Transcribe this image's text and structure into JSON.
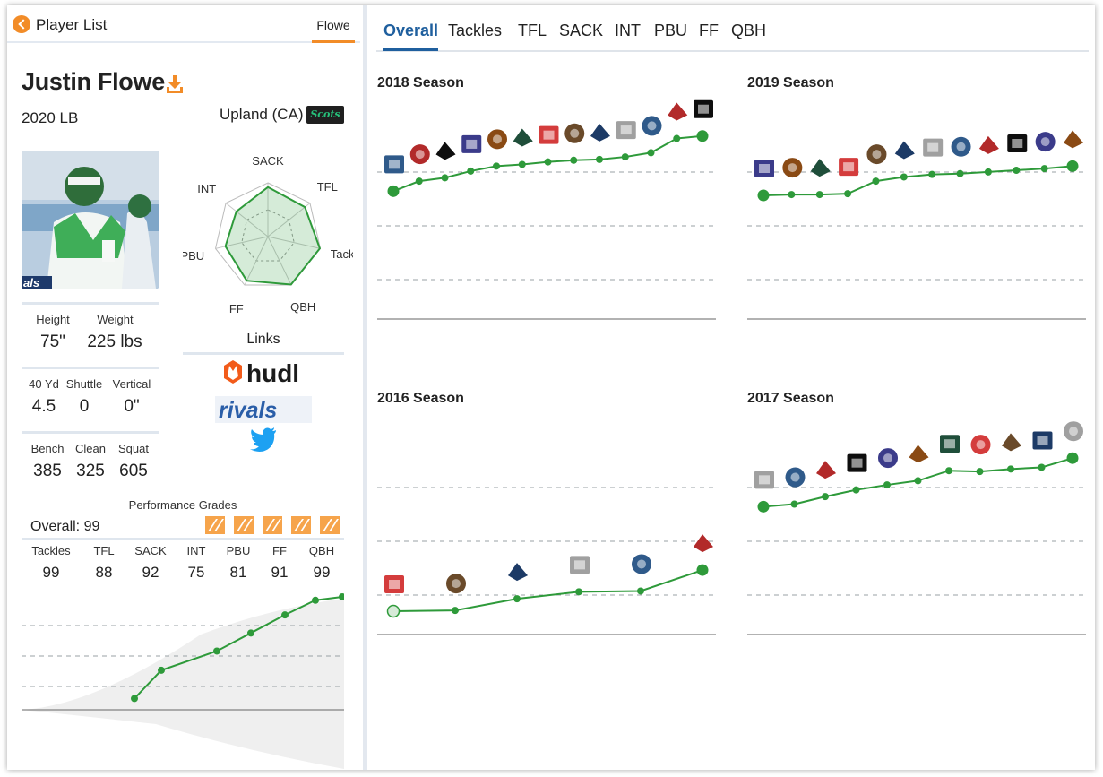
{
  "header": {
    "back_label": "Player List",
    "search_tab": "Flowe"
  },
  "player": {
    "name": "Justin Flowe",
    "class_position": "2020 LB",
    "hometown": "Upland (CA)",
    "school_logo_text": "Scots",
    "photo_watermark": "als"
  },
  "radar": {
    "axes": [
      "SACK",
      "TFL",
      "Tackle",
      "QBH",
      "FF",
      "PBU",
      "INT"
    ],
    "values": [
      0.92,
      0.88,
      0.99,
      0.99,
      0.91,
      0.81,
      0.75
    ]
  },
  "links": {
    "title": "Links",
    "items": [
      "hudl",
      "rivals",
      "twitter"
    ],
    "hudl_label": "hudl",
    "rivals_label": "rivals"
  },
  "measurables": {
    "row1": [
      {
        "label": "Height",
        "value": "75\""
      },
      {
        "label": "Weight",
        "value": "225 lbs"
      }
    ],
    "row2": [
      {
        "label": "40 Yd",
        "value": "4.5"
      },
      {
        "label": "Shuttle",
        "value": "0"
      },
      {
        "label": "Vertical",
        "value": "0\""
      }
    ],
    "row3": [
      {
        "label": "Bench",
        "value": "385"
      },
      {
        "label": "Clean",
        "value": "325"
      },
      {
        "label": "Squat",
        "value": "605"
      }
    ]
  },
  "performance": {
    "title": "Performance Grades",
    "overall_label": "Overall: 99",
    "grade_icon_count": 5,
    "grades": [
      {
        "label": "Tackles",
        "value": "99"
      },
      {
        "label": "TFL",
        "value": "88"
      },
      {
        "label": "SACK",
        "value": "92"
      },
      {
        "label": "INT",
        "value": "75"
      },
      {
        "label": "PBU",
        "value": "81"
      },
      {
        "label": "FF",
        "value": "91"
      },
      {
        "label": "QBH",
        "value": "99"
      }
    ],
    "trend": [
      0.1,
      0.35,
      0.52,
      0.68,
      0.84,
      0.97,
      1.0
    ]
  },
  "tabs": [
    "Overall",
    "Tackles",
    "TFL",
    "SACK",
    "INT",
    "PBU",
    "FF",
    "QBH"
  ],
  "active_tab": "Overall",
  "chart_data": [
    {
      "type": "line",
      "title": "2018 Season",
      "series": [
        {
          "name": "Overall",
          "values": [
            0.2,
            0.32,
            0.36,
            0.44,
            0.5,
            0.52,
            0.55,
            0.57,
            0.58,
            0.61,
            0.66,
            0.83,
            0.86
          ]
        }
      ]
    },
    {
      "type": "line",
      "title": "2019 Season",
      "series": [
        {
          "name": "Overall",
          "values": [
            0.15,
            0.16,
            0.16,
            0.17,
            0.32,
            0.37,
            0.4,
            0.41,
            0.43,
            0.45,
            0.47,
            0.5
          ]
        }
      ]
    },
    {
      "type": "line",
      "title": "2016 Season",
      "series": [
        {
          "name": "Overall",
          "values": [
            0.0,
            0.01,
            0.16,
            0.25,
            0.26,
            0.53
          ]
        }
      ]
    },
    {
      "type": "line",
      "title": "2017 Season",
      "series": [
        {
          "name": "Overall",
          "values": [
            0.2,
            0.23,
            0.32,
            0.4,
            0.46,
            0.51,
            0.63,
            0.62,
            0.65,
            0.67,
            0.78
          ]
        }
      ]
    }
  ],
  "colors": {
    "accent": "#f28c28",
    "tab_active": "#1f5f9e",
    "line": "#2e9a3a",
    "grid": "#9aa0a6"
  }
}
